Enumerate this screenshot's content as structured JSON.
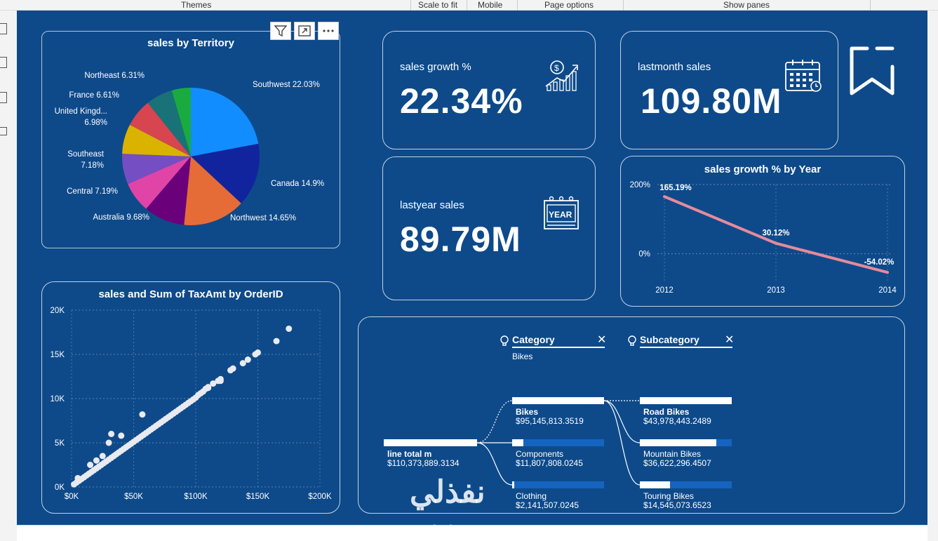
{
  "ribbon": {
    "themes": "Themes",
    "scale_to_fit": "Scale to fit",
    "mobile": "Mobile",
    "page_options": "Page options",
    "show_panes": "Show panes"
  },
  "colors": {
    "canvas": "#0e4a8a",
    "line": "#e78a9a",
    "bar_fill": "#1565c0",
    "bar_white": "#ffffff"
  },
  "pie": {
    "title": "sales by Territory",
    "slices": [
      {
        "label": "Southwest 22.03%",
        "value": 22.03,
        "color": "#118dff"
      },
      {
        "label": "Canada 14.9%",
        "value": 14.9,
        "color": "#12239e"
      },
      {
        "label": "Northwest 14.65%",
        "value": 14.65,
        "color": "#e66c37"
      },
      {
        "label": "Australia 9.68%",
        "value": 9.68,
        "color": "#6b007b"
      },
      {
        "label": "Central 7.19%",
        "value": 7.19,
        "color": "#e044a7"
      },
      {
        "label": "Southeast 7.18%",
        "value": 7.18,
        "color": "#744ec2"
      },
      {
        "label": "United Kingd... 6.98%",
        "value": 6.98,
        "color": "#d9b300"
      },
      {
        "label": "France 6.61%",
        "value": 6.61,
        "color": "#d64550"
      },
      {
        "label": "Northeast 6.31%",
        "value": 6.31,
        "color": "#197278"
      },
      {
        "label": "",
        "value": 4.47,
        "color": "#1aab40"
      }
    ]
  },
  "kpi": {
    "growth": {
      "label": "sales growth %",
      "value": "22.34%"
    },
    "lastmonth": {
      "label": "lastmonth sales",
      "value": "109.80M"
    },
    "lastyear": {
      "label": "lastyear sales",
      "value": "89.79M"
    }
  },
  "chart_data": [
    {
      "type": "line",
      "title": "sales growth % by Year",
      "x": [
        "2012",
        "2013",
        "2014"
      ],
      "series": [
        {
          "values": [
            165.19,
            30.12,
            -54.02
          ]
        }
      ],
      "data_labels": [
        "165.19%",
        "30.12%",
        "-54.02%"
      ],
      "y_ticks": [
        "200%",
        "0%"
      ],
      "ylim": [
        -80,
        200
      ]
    },
    {
      "type": "scatter",
      "title": "sales and Sum of TaxAmt by OrderID",
      "x_ticks": [
        "$0K",
        "$50K",
        "$100K",
        "$150K",
        "$200K"
      ],
      "y_ticks": [
        "0K",
        "5K",
        "10K",
        "15K",
        "20K"
      ],
      "xlim": [
        0,
        200000
      ],
      "ylim": [
        0,
        20000
      ],
      "points": [
        [
          2000,
          300
        ],
        [
          4000,
          500
        ],
        [
          6000,
          700
        ],
        [
          8000,
          900
        ],
        [
          10000,
          1100
        ],
        [
          12000,
          1300
        ],
        [
          14000,
          1500
        ],
        [
          16000,
          1700
        ],
        [
          18000,
          1900
        ],
        [
          20000,
          2100
        ],
        [
          22000,
          2300
        ],
        [
          24000,
          2500
        ],
        [
          26000,
          2700
        ],
        [
          28000,
          2900
        ],
        [
          30000,
          3100
        ],
        [
          32000,
          3300
        ],
        [
          34000,
          3500
        ],
        [
          36000,
          3700
        ],
        [
          38000,
          3900
        ],
        [
          40000,
          4100
        ],
        [
          42000,
          4300
        ],
        [
          44000,
          4500
        ],
        [
          46000,
          4700
        ],
        [
          48000,
          4900
        ],
        [
          50000,
          5100
        ],
        [
          52000,
          5300
        ],
        [
          54000,
          5500
        ],
        [
          56000,
          5700
        ],
        [
          58000,
          5900
        ],
        [
          60000,
          6100
        ],
        [
          62000,
          6300
        ],
        [
          64000,
          6500
        ],
        [
          66000,
          6700
        ],
        [
          68000,
          6900
        ],
        [
          70000,
          7100
        ],
        [
          72000,
          7300
        ],
        [
          74000,
          7500
        ],
        [
          76000,
          7700
        ],
        [
          78000,
          7900
        ],
        [
          80000,
          8100
        ],
        [
          82000,
          8300
        ],
        [
          84000,
          8500
        ],
        [
          86000,
          8700
        ],
        [
          88000,
          8900
        ],
        [
          90000,
          9100
        ],
        [
          92000,
          9300
        ],
        [
          94000,
          9500
        ],
        [
          96000,
          9700
        ],
        [
          98000,
          9900
        ],
        [
          100000,
          10100
        ],
        [
          102000,
          10400
        ],
        [
          104000,
          10600
        ],
        [
          106000,
          10800
        ],
        [
          108000,
          11100
        ],
        [
          110000,
          11300
        ],
        [
          114000,
          11700
        ],
        [
          118000,
          12000
        ],
        [
          120000,
          12200
        ],
        [
          128000,
          13200
        ],
        [
          130000,
          13400
        ],
        [
          138000,
          14000
        ],
        [
          142000,
          14400
        ],
        [
          148000,
          15000
        ],
        [
          150000,
          15200
        ],
        [
          165000,
          16500
        ],
        [
          175000,
          17900
        ],
        [
          30000,
          5000
        ],
        [
          40000,
          5800
        ],
        [
          57000,
          8200
        ],
        [
          110000,
          11200
        ],
        [
          120000,
          12000
        ],
        [
          32000,
          6000
        ],
        [
          20000,
          3000
        ],
        [
          15000,
          2500
        ],
        [
          25000,
          3500
        ],
        [
          5000,
          1000
        ]
      ]
    }
  ],
  "tree": {
    "category_head": "Category",
    "category_sub": "Bikes",
    "subcategory_head": "Subcategory",
    "root": {
      "name": "line total m",
      "value": "$110,373,889.3134"
    },
    "level1": [
      {
        "name": "Bikes",
        "value": "$95,145,813.3519",
        "fraction": 1.0
      },
      {
        "name": "Components",
        "value": "$11,807,808.0245",
        "fraction": 0.12
      },
      {
        "name": "Clothing",
        "value": "$2,141,507.0245",
        "fraction": 0.02
      }
    ],
    "level2": [
      {
        "name": "Road Bikes",
        "value": "$43,978,443.2489",
        "fraction": 1.0
      },
      {
        "name": "Mountain Bikes",
        "value": "$36,622,296.4507",
        "fraction": 0.83
      },
      {
        "name": "Touring Bikes",
        "value": "$14,545,073.6523",
        "fraction": 0.33
      }
    ]
  },
  "watermark": {
    "arabic": "نفذلي",
    "latin": "nafezly.com"
  }
}
